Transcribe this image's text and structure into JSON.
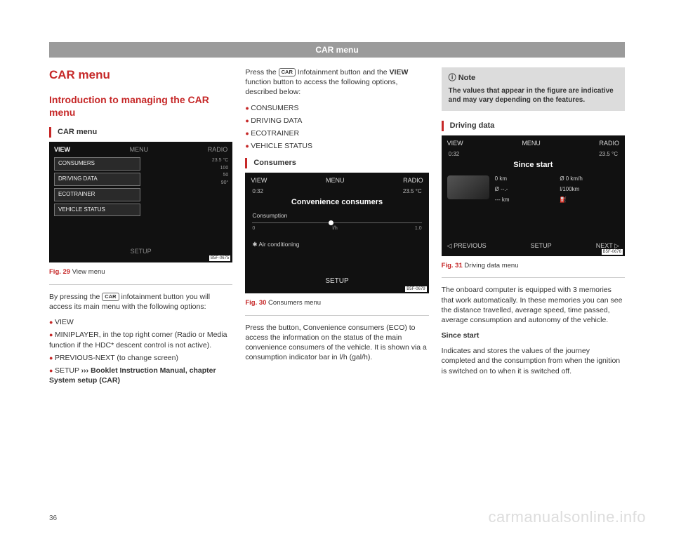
{
  "header": "CAR menu",
  "col1": {
    "h1": "CAR menu",
    "h2": "Introduction to managing the CAR menu",
    "section": "CAR menu",
    "fig29": {
      "top": {
        "view": "VIEW",
        "menu": "MENU",
        "radio": "RADIO"
      },
      "items": [
        "CONSUMERS",
        "DRIVING DATA",
        "ECOTRAINER",
        "VEHICLE STATUS"
      ],
      "temp": "23.5 °C",
      "scale1": "100",
      "scale2": "50",
      "angle": "90°",
      "setup": "SETUP",
      "code": "B5F-0675"
    },
    "fig29cap": {
      "num": "Fig. 29",
      "text": "  View menu"
    },
    "chip": "CAR",
    "p1a": "By pressing the ",
    "p1b": " infotainment button you will access its main menu with the following options:",
    "bullets": [
      "VIEW",
      "MINIPLAYER, in the top right corner (Radio or Media function if the HDC* descent control is not active).",
      "PREVIOUS-NEXT (to change screen)"
    ],
    "bullet4a": "SETUP ",
    "bullet4arrows": "›››",
    "bullet4b": " Booklet Instruction Manual, chapter System setup (CAR)"
  },
  "col2": {
    "p1a": "Press the ",
    "chip": "CAR",
    "p1b": " Infotainment button and the ",
    "viewbtn": "VIEW",
    "p1c": " function button to access the following options, described below:",
    "bullets": [
      "CONSUMERS",
      "DRIVING DATA",
      "ECOTRAINER",
      "VEHICLE STATUS"
    ],
    "section": "Consumers",
    "fig30": {
      "top": {
        "view": "VIEW",
        "menu": "MENU",
        "radio": "RADIO"
      },
      "time": "0:32",
      "temp": "23.5 °C",
      "title": "Convenience consumers",
      "consumption": "Consumption",
      "ac": "✱  Air conditioning",
      "s0": "0",
      "sunit": "l/h",
      "s1": "1.0",
      "setup": "SETUP",
      "code": "B5F-0679"
    },
    "fig30cap": {
      "num": "Fig. 30",
      "text": "  Consumers menu"
    },
    "p2": "Press the button, Convenience consumers (ECO)  to access the information on the status of the main convenience consumers of the vehicle. It is shown via a consumption indicator bar in l/h (gal/h)."
  },
  "col3": {
    "note": {
      "title": "Note",
      "body": "The values that appear in the figure are indicative and may vary depending on the features."
    },
    "section": "Driving data",
    "fig31": {
      "top": {
        "view": "VIEW",
        "menu": "MENU",
        "radio": "RADIO"
      },
      "time": "0:32",
      "temp": "23.5 °C",
      "title": "Since start",
      "km": "0  km",
      "kmh": "Ø 0  km/h",
      "dash": "Ø --.-",
      "lkm": "l/100km",
      "km2": "---  km",
      "prev": "◁ PREVIOUS",
      "setup": "SETUP",
      "next": "NEXT ▷",
      "code": "B5F-0676"
    },
    "fig31cap": {
      "num": "Fig. 31",
      "text": "  Driving data menu"
    },
    "p1": "The onboard computer is equipped with 3 memories that work automatically. In these memories you can see the distance travelled, average speed, time passed, average consumption and autonomy of the vehicle.",
    "h3": "Since start",
    "p2": "Indicates and stores the values of the journey completed and the consumption from when the ignition is switched on to when it is switched off."
  },
  "pagenum": "36",
  "watermark": "carmanualsonline.info"
}
